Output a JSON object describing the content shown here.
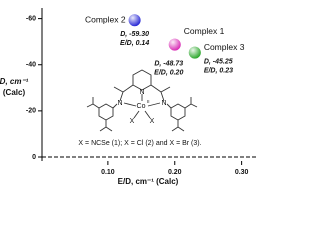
{
  "chart_data": {
    "type": "scatter",
    "y_label": [
      "D, cm⁻¹",
      "(Calc)"
    ],
    "x_label": "E/D, cm⁻¹ (Calc)",
    "ylim": [
      0,
      -62
    ],
    "yticks": [
      -60,
      -40,
      -20,
      0
    ],
    "xlim": [
      0,
      0.32
    ],
    "xticks": [
      {
        "value": 0.1,
        "label": "0.10"
      },
      {
        "value": 0.2,
        "label": "0.20"
      },
      {
        "value": 0.3,
        "label": "0.30"
      }
    ],
    "series": [
      {
        "name": "Complex 2",
        "color": "#2b2bd6",
        "x": [
          0.14
        ],
        "values": [
          -59.3
        ],
        "value_labels": [
          "D, -59.30"
        ],
        "x_labels": [
          "E/D, 0.14"
        ]
      },
      {
        "name": "Complex 1",
        "color": "#d92fb6",
        "x": [
          0.2
        ],
        "values": [
          -48.73
        ],
        "value_labels": [
          "D, -48.73"
        ],
        "x_labels": [
          "E/D, 0.20"
        ]
      },
      {
        "name": "Complex 3",
        "color": "#2ea82e",
        "x": [
          0.23
        ],
        "values": [
          -45.25
        ],
        "value_labels": [
          "D, -45.25"
        ],
        "x_labels": [
          "E/D, 0.23"
        ]
      }
    ]
  },
  "structure": {
    "atoms": [
      "N",
      "N",
      "N",
      "Co",
      "II",
      "X",
      "X"
    ],
    "caption": "X = NCSe (1); X = Cl (2) and X = Br (3)."
  }
}
